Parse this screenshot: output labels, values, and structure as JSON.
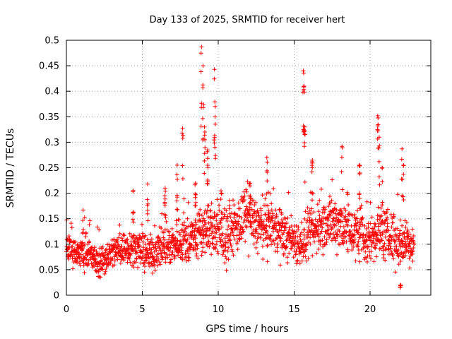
{
  "chart_data": {
    "type": "scatter",
    "title": "Day 133 of 2025, SRMTID for receiver hert",
    "xlabel": "GPS time / hours",
    "ylabel": "SRMTID / TECUs",
    "xlim": [
      0,
      24
    ],
    "ylim": [
      0,
      0.5
    ],
    "x_ticks": [
      0,
      5,
      10,
      15,
      20
    ],
    "x_tick_labels": [
      "0",
      "5",
      "10",
      "15",
      "20"
    ],
    "y_ticks": [
      0,
      0.05,
      0.1,
      0.15,
      0.2,
      0.25,
      0.3,
      0.35,
      0.4,
      0.45,
      0.5
    ],
    "y_tick_labels": [
      "0",
      "0.05",
      "0.1",
      "0.15",
      "0.2",
      "0.25",
      "0.3",
      "0.35",
      "0.4",
      "0.45",
      "0.5"
    ],
    "grid": true,
    "marker": "+",
    "color": "#ff0000",
    "x_end": 22.9,
    "sample_step_hours": 0.0125,
    "baseline": [
      [
        0,
        0.088
      ],
      [
        0.5,
        0.08
      ],
      [
        1,
        0.085
      ],
      [
        1.5,
        0.078
      ],
      [
        2,
        0.065
      ],
      [
        2.5,
        0.07
      ],
      [
        3,
        0.085
      ],
      [
        3.5,
        0.09
      ],
      [
        4,
        0.095
      ],
      [
        4.5,
        0.095
      ],
      [
        5,
        0.085
      ],
      [
        5.5,
        0.08
      ],
      [
        6,
        0.09
      ],
      [
        6.5,
        0.095
      ],
      [
        7,
        0.1
      ],
      [
        7.5,
        0.11
      ],
      [
        8,
        0.105
      ],
      [
        8.5,
        0.115
      ],
      [
        9,
        0.125
      ],
      [
        9.5,
        0.13
      ],
      [
        10,
        0.12
      ],
      [
        10.5,
        0.115
      ],
      [
        11,
        0.13
      ],
      [
        11.5,
        0.145
      ],
      [
        12,
        0.15
      ],
      [
        12.5,
        0.14
      ],
      [
        13,
        0.125
      ],
      [
        13.5,
        0.14
      ],
      [
        14,
        0.12
      ],
      [
        14.5,
        0.115
      ],
      [
        15,
        0.11
      ],
      [
        15.5,
        0.1
      ],
      [
        16,
        0.115
      ],
      [
        16.5,
        0.13
      ],
      [
        17,
        0.14
      ],
      [
        17.5,
        0.14
      ],
      [
        18,
        0.145
      ],
      [
        18.5,
        0.13
      ],
      [
        19,
        0.12
      ],
      [
        19.5,
        0.105
      ],
      [
        20,
        0.11
      ],
      [
        20.5,
        0.125
      ],
      [
        21,
        0.12
      ],
      [
        21.5,
        0.11
      ],
      [
        22,
        0.1
      ],
      [
        22.5,
        0.105
      ],
      [
        22.9,
        0.1
      ]
    ],
    "spread": [
      [
        0,
        0.022
      ],
      [
        5,
        0.025
      ],
      [
        7,
        0.03
      ],
      [
        9,
        0.04
      ],
      [
        12,
        0.04
      ],
      [
        15,
        0.032
      ],
      [
        18,
        0.04
      ],
      [
        20,
        0.04
      ],
      [
        22.9,
        0.032
      ]
    ],
    "peaks": [
      {
        "x": 0.1,
        "y": 0.11
      },
      {
        "x": 1.1,
        "y": 0.167
      },
      {
        "x": 4.4,
        "y": 0.205
      },
      {
        "x": 5.35,
        "y": 0.218
      },
      {
        "x": 6.5,
        "y": 0.21
      },
      {
        "x": 7.3,
        "y": 0.255
      },
      {
        "x": 7.65,
        "y": 0.327
      },
      {
        "x": 8.5,
        "y": 0.22
      },
      {
        "x": 8.9,
        "y": 0.487
      },
      {
        "x": 9.0,
        "y": 0.45
      },
      {
        "x": 9.1,
        "y": 0.33
      },
      {
        "x": 9.3,
        "y": 0.285
      },
      {
        "x": 9.75,
        "y": 0.443
      },
      {
        "x": 9.8,
        "y": 0.37
      },
      {
        "x": 10.2,
        "y": 0.2
      },
      {
        "x": 12.1,
        "y": 0.22
      },
      {
        "x": 13.3,
        "y": 0.202
      },
      {
        "x": 13.2,
        "y": 0.27
      },
      {
        "x": 15.6,
        "y": 0.44
      },
      {
        "x": 15.65,
        "y": 0.41
      },
      {
        "x": 15.7,
        "y": 0.33
      },
      {
        "x": 16.2,
        "y": 0.265
      },
      {
        "x": 18.15,
        "y": 0.292
      },
      {
        "x": 19.3,
        "y": 0.255
      },
      {
        "x": 20.5,
        "y": 0.352
      },
      {
        "x": 20.6,
        "y": 0.31
      },
      {
        "x": 20.8,
        "y": 0.25
      },
      {
        "x": 22.1,
        "y": 0.287
      },
      {
        "x": 22.2,
        "y": 0.255
      },
      {
        "x": 22.0,
        "y": 0.02
      }
    ]
  }
}
